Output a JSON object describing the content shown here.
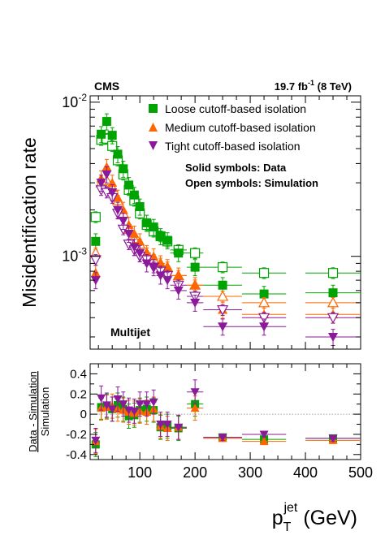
{
  "chart_data": {
    "type": "scatter",
    "experiment": "CMS",
    "luminosity": "19.7 fb",
    "luminosity_sup": "-1",
    "energy": "(8 TeV)",
    "selection": "Multijet",
    "legend": {
      "placement": "top-right",
      "notes": [
        "Solid symbols: Data",
        "Open symbols: Simulation"
      ]
    },
    "xlabel_main": "p",
    "xlabel_sub": "T",
    "xlabel_sup": "jet",
    "xlabel_unit": "(GeV)",
    "xlim": [
      10,
      500
    ],
    "x_ticks": [
      "100",
      "200",
      "300",
      "400",
      "500"
    ],
    "top_panel": {
      "ylabel": "Misidentification rate",
      "yscale": "log",
      "ylim": [
        0.00025,
        0.011
      ],
      "y_ticks": [
        {
          "base": "10",
          "exp": "-2",
          "value": 0.01
        },
        {
          "base": "10",
          "exp": "-3",
          "value": 0.001
        }
      ],
      "series": [
        {
          "name": "Loose cutoff-based isolation",
          "color": "#00a400",
          "marker": "square",
          "data": [
            0.00125,
            0.0062,
            0.0075,
            0.0061,
            0.0046,
            0.0037,
            0.0029,
            0.0025,
            0.0021,
            0.00165,
            0.00155,
            0.00135,
            0.00127,
            0.00105,
            0.00085,
            0.00065,
            0.00057,
            0.00058
          ],
          "simulation": [
            0.0018,
            0.0057,
            0.0058,
            0.0052,
            0.0042,
            0.0034,
            0.0027,
            0.0023,
            0.0019,
            0.0016,
            0.00145,
            0.00135,
            0.00125,
            0.0011,
            0.00105,
            0.00085,
            0.00078,
            0.00078
          ]
        },
        {
          "name": "Medium cutoff-based isolation",
          "color": "#ff6600",
          "marker": "triangle-up",
          "data": [
            0.00078,
            0.0032,
            0.0038,
            0.003,
            0.0024,
            0.002,
            0.0016,
            0.0014,
            0.00125,
            0.00105,
            0.001,
            0.0009,
            0.00085,
            0.00075,
            0.00065,
            0.00045,
            0.00042,
            0.00042
          ],
          "simulation": [
            0.00105,
            0.003,
            0.0031,
            0.0028,
            0.0023,
            0.0019,
            0.0015,
            0.0013,
            0.0012,
            0.00105,
            0.00095,
            0.0009,
            0.00085,
            0.00075,
            0.00065,
            0.00055,
            0.0005,
            0.0005
          ]
        },
        {
          "name": "Tight cutoff-based isolation",
          "color": "#8b1a9a",
          "marker": "triangle-down",
          "data": [
            0.0007,
            0.003,
            0.0034,
            0.0026,
            0.002,
            0.0017,
            0.0014,
            0.00115,
            0.00105,
            0.0009,
            0.00085,
            0.00075,
            0.0007,
            0.0006,
            0.0005,
            0.00035,
            0.00035,
            0.0003
          ],
          "simulation": [
            0.00095,
            0.0027,
            0.0026,
            0.0024,
            0.0019,
            0.0015,
            0.0012,
            0.0011,
            0.001,
            0.00095,
            0.00085,
            0.0008,
            0.00075,
            0.00065,
            0.00055,
            0.00045,
            0.0004,
            0.0004
          ]
        }
      ]
    },
    "bins": {
      "x": [
        20,
        30,
        40,
        50,
        60,
        70,
        80,
        90,
        100,
        112.5,
        125,
        137.5,
        150,
        170,
        200,
        250,
        325,
        450
      ],
      "xlo": [
        15,
        25,
        35,
        45,
        55,
        65,
        75,
        85,
        95,
        105,
        120,
        130,
        145,
        155,
        185,
        215,
        285,
        400
      ],
      "xhi": [
        25,
        35,
        45,
        55,
        65,
        75,
        85,
        95,
        105,
        120,
        130,
        145,
        155,
        185,
        215,
        285,
        365,
        500
      ]
    },
    "bottom_panel": {
      "ylabel_numerator": "Data - Simulation",
      "ylabel_denominator": "Simulation",
      "ylim": [
        -0.45,
        0.5
      ],
      "y_ticks": [
        "0.4",
        "0.2",
        "0",
        "-0.2",
        "-0.4"
      ],
      "y_tick_values": [
        0.4,
        0.2,
        0,
        -0.2,
        -0.4
      ],
      "reference_line": 0,
      "series": [
        {
          "name": "Loose cutoff-based isolation",
          "values": [
            -0.3,
            0.07,
            0.08,
            0.05,
            0.09,
            0.05,
            -0.02,
            -0.01,
            0.04,
            0.05,
            0.04,
            -0.13,
            -0.12,
            -0.14,
            0.1,
            -0.23,
            -0.25,
            -0.24
          ]
        },
        {
          "name": "Medium cutoff-based isolation",
          "values": [
            -0.27,
            0.06,
            0.07,
            0.08,
            0.05,
            0.04,
            0.02,
            0.01,
            0.03,
            0.02,
            0.05,
            -0.12,
            -0.14,
            -0.13,
            0.06,
            -0.24,
            -0.27,
            -0.26
          ]
        },
        {
          "name": "Tight cutoff-based isolation",
          "values": [
            -0.26,
            0.16,
            0.09,
            0.05,
            0.15,
            0.1,
            0.04,
            0.03,
            0.1,
            0.1,
            0.12,
            -0.1,
            -0.1,
            -0.13,
            0.22,
            -0.23,
            -0.2,
            -0.24
          ]
        }
      ]
    }
  }
}
